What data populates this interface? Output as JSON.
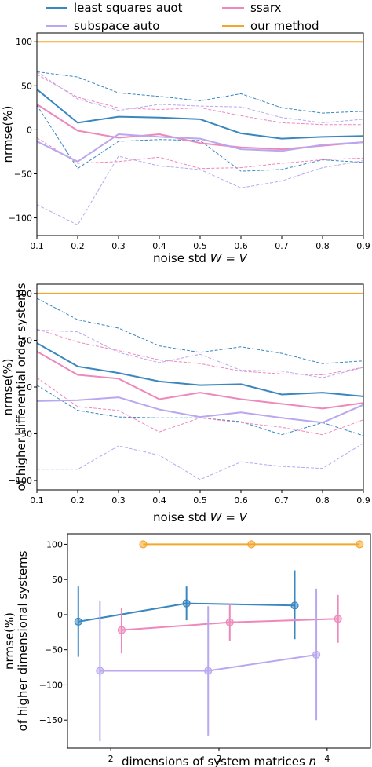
{
  "legend": [
    {
      "label": "least squares auot",
      "color": "#3a87c0"
    },
    {
      "label": "ssarx",
      "color": "#ee88bb"
    },
    {
      "label": "subspace auto",
      "color": "#b9a7ef"
    },
    {
      "label": "our method",
      "color": "#f4a62a"
    }
  ],
  "chart_data": [
    {
      "type": "line",
      "xlabel": "noise std W = V",
      "ylabel": "nrmse(%)",
      "xlim": [
        0.1,
        0.9
      ],
      "ylim": [
        -120,
        110
      ],
      "xticks": [
        0.1,
        0.2,
        0.3,
        0.4,
        0.5,
        0.6,
        0.7,
        0.8,
        0.9
      ],
      "xtick_labels": [
        "0.1",
        "0.2",
        "0.3",
        "0.4",
        "0.5",
        "0.6",
        "0.7",
        "0.8",
        "0.9"
      ],
      "yticks": [
        -100,
        -50,
        0,
        50,
        100
      ],
      "ytick_labels": [
        "−100",
        "−50",
        "0",
        "50",
        "100"
      ],
      "x": [
        0.1,
        0.2,
        0.3,
        0.4,
        0.5,
        0.6,
        0.7,
        0.8,
        0.9
      ],
      "series": [
        {
          "name": "least squares auot",
          "color": "#3a87c0",
          "style": "solid",
          "values": [
            46,
            8,
            15,
            14,
            12,
            -4,
            -10,
            -8,
            -7
          ]
        },
        {
          "color": "#3a87c0",
          "style": "dashed",
          "values": [
            66,
            60,
            42,
            38,
            33,
            41,
            25,
            19,
            21
          ]
        },
        {
          "color": "#3a87c0",
          "style": "dashed",
          "values": [
            28,
            -44,
            -13,
            -11,
            -12,
            -47,
            -45,
            -34,
            -37
          ]
        },
        {
          "name": "ssarx",
          "color": "#ee88bb",
          "style": "solid",
          "values": [
            29,
            -1,
            -9,
            -5,
            -15,
            -20,
            -22,
            -18,
            -14
          ]
        },
        {
          "color": "#ee88bb",
          "style": "dashed",
          "values": [
            63,
            37,
            25,
            23,
            25,
            16,
            8,
            6,
            6
          ]
        },
        {
          "color": "#ee88bb",
          "style": "dashed",
          "values": [
            -9,
            -38,
            -36,
            -31,
            -44,
            -43,
            -38,
            -34,
            -32
          ]
        },
        {
          "name": "subspace auto",
          "color": "#b9a7ef",
          "style": "solid",
          "values": [
            -13,
            -36,
            -5,
            -8,
            -10,
            -22,
            -24,
            -17,
            -14
          ]
        },
        {
          "color": "#b9a7ef",
          "style": "dashed",
          "values": [
            66,
            35,
            22,
            29,
            27,
            26,
            14,
            8,
            12
          ]
        },
        {
          "color": "#b9a7ef",
          "style": "dashed",
          "values": [
            -85,
            -108,
            -30,
            -41,
            -45,
            -66,
            -58,
            -43,
            -35
          ]
        },
        {
          "name": "our method",
          "color": "#f4a62a",
          "style": "solid",
          "values": [
            100,
            100,
            100,
            100,
            100,
            100,
            100,
            100,
            100
          ]
        }
      ]
    },
    {
      "type": "line",
      "xlabel": "noise std W = V",
      "ylabel": "nrmse(%) of higher differential order systems",
      "ylabel_lines": [
        "nrmse(%)",
        "of higher differential order systems"
      ],
      "xlim": [
        0.1,
        0.9
      ],
      "ylim": [
        -110,
        110
      ],
      "xticks": [
        0.1,
        0.2,
        0.3,
        0.4,
        0.5,
        0.6,
        0.7,
        0.8,
        0.9
      ],
      "xtick_labels": [
        "0.1",
        "0.2",
        "0.3",
        "0.4",
        "0.5",
        "0.6",
        "0.7",
        "0.8",
        "0.9"
      ],
      "yticks": [
        -100,
        -50,
        0,
        50,
        100
      ],
      "ytick_labels": [
        "−100",
        "−50",
        "0",
        "50",
        "100"
      ],
      "x": [
        0.1,
        0.2,
        0.3,
        0.4,
        0.5,
        0.6,
        0.7,
        0.8,
        0.9
      ],
      "series": [
        {
          "name": "least squares auot",
          "color": "#3a87c0",
          "style": "solid",
          "values": [
            47,
            22,
            15,
            6,
            2,
            3,
            -8,
            -6,
            -10
          ]
        },
        {
          "color": "#3a87c0",
          "style": "dashed",
          "values": [
            95,
            72,
            63,
            44,
            37,
            43,
            36,
            25,
            28
          ]
        },
        {
          "color": "#3a87c0",
          "style": "dashed",
          "values": [
            2,
            -25,
            -32,
            -33,
            -33,
            -37,
            -51,
            -38,
            -52
          ]
        },
        {
          "name": "ssarx",
          "color": "#ee88bb",
          "style": "solid",
          "values": [
            38,
            13,
            9,
            -13,
            -6,
            -13,
            -18,
            -23,
            -17
          ]
        },
        {
          "color": "#ee88bb",
          "style": "dashed",
          "values": [
            62,
            48,
            39,
            29,
            25,
            17,
            14,
            13,
            21
          ]
        },
        {
          "color": "#ee88bb",
          "style": "dashed",
          "values": [
            10,
            -21,
            -25,
            -48,
            -33,
            -38,
            -43,
            -51,
            -35
          ]
        },
        {
          "name": "subspace auto",
          "color": "#b9a7ef",
          "style": "solid",
          "values": [
            -15,
            -14,
            -11,
            -24,
            -32,
            -27,
            -33,
            -38,
            -19
          ]
        },
        {
          "color": "#b9a7ef",
          "style": "dashed",
          "values": [
            61,
            59,
            37,
            26,
            35,
            18,
            17,
            10,
            21
          ]
        },
        {
          "color": "#b9a7ef",
          "style": "dashed",
          "values": [
            -88,
            -88,
            -63,
            -73,
            -99,
            -80,
            -85,
            -87,
            -60
          ]
        },
        {
          "name": "our method",
          "color": "#f4a62a",
          "style": "solid",
          "values": [
            100,
            100,
            100,
            100,
            100,
            100,
            100,
            100,
            100
          ]
        }
      ]
    },
    {
      "type": "errorbar",
      "xlabel": "dimensions of system matrices n",
      "ylabel": "nrmse(%) of higher dimensional systems",
      "ylabel_lines": [
        "nrmse(%)",
        "of higher dimensional systems"
      ],
      "xlim": [
        1.6,
        4.4
      ],
      "ylim": [
        -190,
        115
      ],
      "xticks": [
        2,
        3,
        4
      ],
      "xtick_labels": [
        "2",
        "3",
        "4"
      ],
      "yticks": [
        -150,
        -100,
        -50,
        0,
        50,
        100
      ],
      "ytick_labels": [
        "−150",
        "−100",
        "−50",
        "0",
        "50",
        "100"
      ],
      "series": [
        {
          "name": "least squares auot",
          "color": "#3a87c0",
          "points": [
            {
              "x": 1.7,
              "y": -10,
              "lo": -60,
              "hi": 40
            },
            {
              "x": 2.7,
              "y": 16,
              "lo": -8,
              "hi": 40
            },
            {
              "x": 3.7,
              "y": 13,
              "lo": -35,
              "hi": 63
            }
          ]
        },
        {
          "name": "ssarx",
          "color": "#ee88bb",
          "points": [
            {
              "x": 2.1,
              "y": -22,
              "lo": -55,
              "hi": 9
            },
            {
              "x": 3.1,
              "y": -11,
              "lo": -38,
              "hi": 15
            },
            {
              "x": 4.1,
              "y": -6,
              "lo": -40,
              "hi": 28
            }
          ]
        },
        {
          "name": "subspace auto",
          "color": "#b9a7ef",
          "points": [
            {
              "x": 1.9,
              "y": -80,
              "lo": -180,
              "hi": 20
            },
            {
              "x": 2.9,
              "y": -80,
              "lo": -172,
              "hi": 12
            },
            {
              "x": 3.9,
              "y": -57,
              "lo": -150,
              "hi": 37
            }
          ]
        },
        {
          "name": "our method",
          "color": "#f4a62a",
          "points": [
            {
              "x": 2.3,
              "y": 100,
              "lo": 100,
              "hi": 100
            },
            {
              "x": 3.3,
              "y": 100,
              "lo": 100,
              "hi": 100
            },
            {
              "x": 4.3,
              "y": 100,
              "lo": 100,
              "hi": 100
            }
          ]
        }
      ]
    }
  ]
}
